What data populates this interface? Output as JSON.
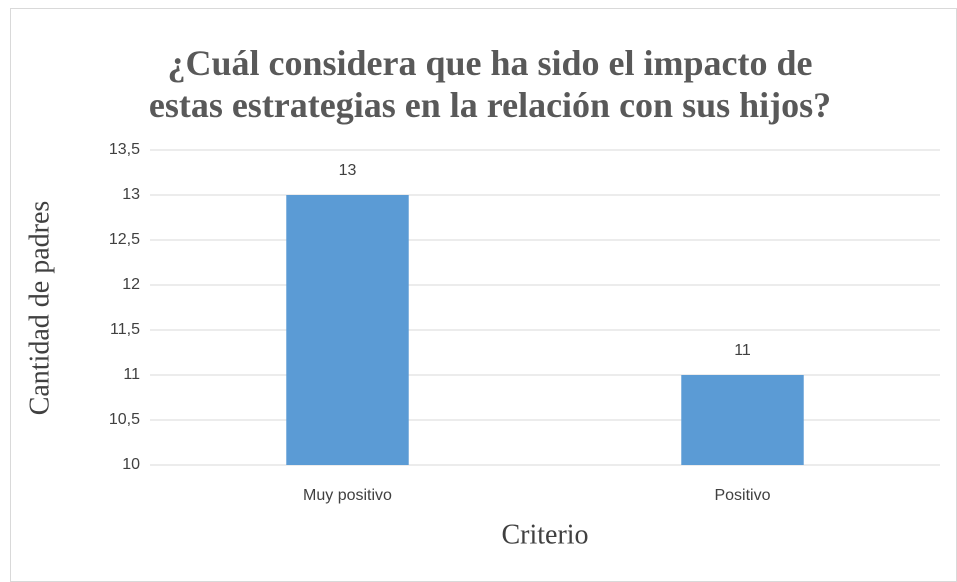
{
  "chart_data": {
    "type": "bar",
    "title": "¿Cuál considera que ha sido el impacto de estas estrategias en la relación con sus hijos?",
    "xlabel": "Criterio",
    "ylabel": "Cantidad de padres",
    "categories": [
      "Muy positivo",
      "Positivo"
    ],
    "values": [
      13,
      11
    ],
    "color": "#5b9bd5",
    "ylim": [
      10,
      13.5
    ],
    "yticks": [
      10,
      {
        "value": 10.5,
        "label": "10,5"
      },
      11,
      {
        "value": 11.5,
        "label": "11,5"
      },
      12,
      {
        "value": 12.5,
        "label": "12,5"
      },
      13,
      {
        "value": 13.5,
        "label": "13,5"
      }
    ],
    "grid": true
  }
}
